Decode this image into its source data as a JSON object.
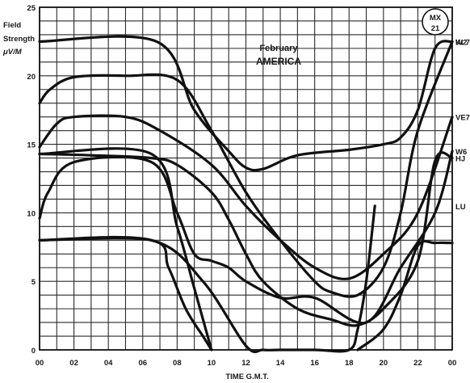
{
  "chart_data": {
    "type": "line",
    "ylabel": [
      "Field",
      "Strength",
      "μV/M"
    ],
    "xlabel": "TIME G.M.T.",
    "annotation": [
      "February",
      "AMERICA"
    ],
    "badge": [
      "MX",
      "21"
    ],
    "xlim": [
      0,
      24
    ],
    "ylim": [
      0,
      25
    ],
    "x_ticks": [
      "00",
      "02",
      "04",
      "06",
      "08",
      "10",
      "12",
      "14",
      "16",
      "18",
      "20",
      "22",
      "00"
    ],
    "y_ticks": [
      "0",
      "5",
      "10",
      "15",
      "20",
      "25"
    ],
    "grid": true,
    "series": [
      {
        "name": "W2",
        "x": [
          0,
          6.8,
          9,
          11,
          12,
          13,
          15,
          18,
          20,
          21,
          22,
          23,
          24
        ],
        "y": [
          22.5,
          22.5,
          17.5,
          14.5,
          13.3,
          13.2,
          14.2,
          14.6,
          15,
          15.5,
          17.5,
          22,
          22.5
        ]
      },
      {
        "name": "KL7",
        "x": [
          0,
          0.6,
          2,
          5,
          8,
          10,
          12,
          14,
          16,
          17,
          18.5,
          20,
          21,
          22,
          24
        ],
        "y": [
          18,
          19,
          19.9,
          20,
          19.7,
          16,
          11.5,
          8,
          5,
          4.2,
          4,
          6,
          10,
          16,
          22.5
        ]
      },
      {
        "name": "VE7",
        "x": [
          0,
          1,
          2,
          5,
          7,
          10,
          12,
          14,
          16,
          18,
          20,
          22,
          24
        ],
        "y": [
          14.8,
          16.5,
          17,
          17,
          16,
          13.5,
          10.5,
          8,
          6,
          5.2,
          7,
          10,
          17
        ]
      },
      {
        "name": "HJ",
        "x": [
          0,
          3,
          6.5,
          8,
          10,
          11,
          12,
          13,
          15,
          17,
          18.5,
          20,
          22,
          23,
          24
        ],
        "y": [
          14.3,
          14.2,
          14,
          13.5,
          11.5,
          9.5,
          7,
          5,
          3,
          2.2,
          1.8,
          3,
          6.5,
          13.8,
          14
        ]
      },
      {
        "name": "W6",
        "x": [
          0,
          0.5,
          2,
          6.5,
          8,
          9,
          10,
          11,
          12,
          14,
          16,
          19,
          21,
          23,
          24
        ],
        "y": [
          9.6,
          11.5,
          13.7,
          13.7,
          10,
          7,
          6.5,
          6,
          5,
          3.8,
          3.8,
          2,
          6,
          10,
          14.5
        ]
      },
      {
        "name": "LU",
        "x": [
          0,
          6.5,
          9.5,
          12,
          13,
          14,
          16,
          18,
          18.5,
          19,
          19.5
        ],
        "y": [
          8,
          8,
          5,
          0.3,
          0,
          0,
          0,
          0,
          1.5,
          5,
          10.5
        ]
      },
      {
        "name": "",
        "x": [
          0,
          6.5,
          8,
          9,
          10
        ],
        "y": [
          14.3,
          14.3,
          9,
          4.5,
          0
        ]
      },
      {
        "name": "",
        "x": [
          0,
          6.5,
          7.5,
          8.5,
          9.5,
          10
        ],
        "y": [
          8,
          8,
          6,
          3,
          1,
          0
        ]
      },
      {
        "name": "",
        "x": [
          18.5,
          20,
          21,
          22,
          23,
          24
        ],
        "y": [
          0,
          1.5,
          4,
          7.6,
          7.8,
          7.8
        ]
      }
    ]
  }
}
